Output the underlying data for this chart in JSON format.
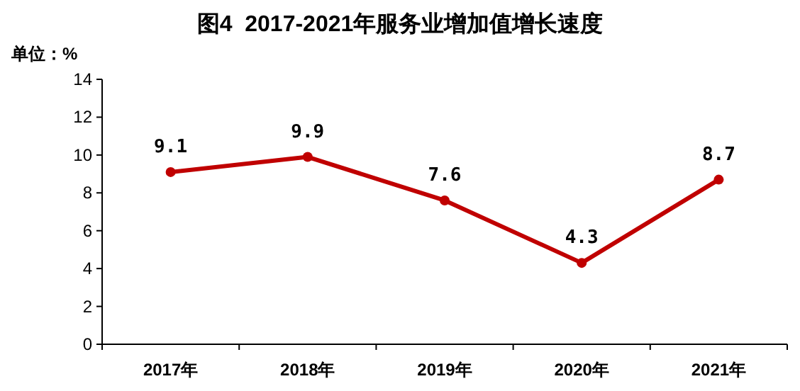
{
  "chart_data": {
    "type": "line",
    "title": "图4  2017-2021年服务业增加值增长速度",
    "ylabel": "单位：%",
    "categories": [
      "2017年",
      "2018年",
      "2019年",
      "2020年",
      "2021年"
    ],
    "series": [
      {
        "color": "#c00000",
        "values": [
          9.1,
          9.9,
          7.6,
          4.3,
          8.7
        ]
      }
    ],
    "ylim": [
      0,
      14
    ],
    "yticks": [
      0,
      2,
      4,
      6,
      8,
      10,
      12,
      14
    ],
    "data_labels": true,
    "marker": "circle"
  }
}
